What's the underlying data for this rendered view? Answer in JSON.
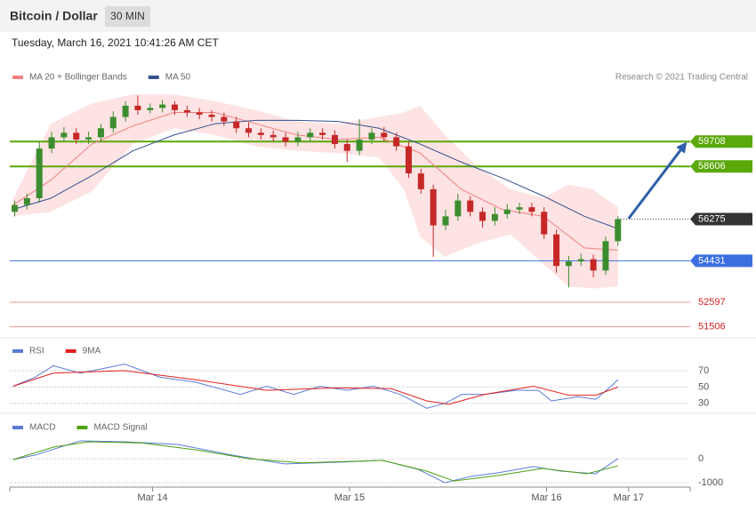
{
  "header": {
    "title": "Bitcoin / Dollar",
    "interval": "30 MIN",
    "timestamp": "Tuesday, March 16, 2021 10:41:26 AM CET",
    "credit": "Research © 2021 Trading Central"
  },
  "chart_data": [
    {
      "type": "candlestick",
      "xlim": [
        0,
        82.9
      ],
      "ylim": [
        51100,
        62200
      ],
      "color_up": "#3c8d2f",
      "color_down": "#c62828",
      "x": [
        0.6,
        2.1,
        3.6,
        5.1,
        6.6,
        8.1,
        9.6,
        11.1,
        12.6,
        14.1,
        15.6,
        17.1,
        18.6,
        20.1,
        21.6,
        23.1,
        24.6,
        26.1,
        27.6,
        29.1,
        30.6,
        32.1,
        33.6,
        35.1,
        36.6,
        38.1,
        39.6,
        41.1,
        42.6,
        44.1,
        45.6,
        47.1,
        48.6,
        50.1,
        51.6,
        53.1,
        54.6,
        56.1,
        57.6,
        59.1,
        60.6,
        62.1,
        63.6,
        65.1,
        66.6,
        68.1,
        69.6,
        71.1,
        72.6,
        74.1
      ],
      "open": [
        56600,
        56900,
        57200,
        59400,
        59900,
        60100,
        59800,
        59900,
        60300,
        60800,
        61300,
        61100,
        61200,
        61350,
        61100,
        61000,
        60900,
        60800,
        60600,
        60300,
        60100,
        60000,
        59900,
        59700,
        59900,
        60100,
        60000,
        59600,
        59300,
        59800,
        60100,
        59900,
        59500,
        58300,
        57600,
        56000,
        56400,
        57100,
        56600,
        56200,
        56500,
        56700,
        56800,
        56600,
        55600,
        54200,
        54400,
        54500,
        54000,
        55300
      ],
      "high": [
        57100,
        57400,
        59700,
        60150,
        60350,
        60300,
        60150,
        60500,
        61050,
        61500,
        61750,
        61400,
        61550,
        61500,
        61300,
        61200,
        61100,
        61000,
        60800,
        60550,
        60300,
        60200,
        60100,
        60150,
        60300,
        60300,
        60200,
        59800,
        60700,
        60300,
        60350,
        60100,
        59700,
        58500,
        57800,
        56700,
        57400,
        57300,
        56800,
        56800,
        56950,
        57000,
        57000,
        56800,
        55800,
        54650,
        54750,
        54700,
        55500,
        56400
      ],
      "low": [
        56400,
        56700,
        57000,
        59200,
        59700,
        59600,
        59600,
        59700,
        60100,
        60600,
        60900,
        60950,
        61000,
        60900,
        60800,
        60700,
        60600,
        60400,
        60100,
        59900,
        59800,
        59700,
        59500,
        59500,
        59700,
        59800,
        59400,
        58800,
        59100,
        59600,
        59700,
        59300,
        58100,
        57400,
        54600,
        55800,
        56200,
        56400,
        55900,
        56000,
        56300,
        56500,
        56400,
        55400,
        53900,
        53250,
        54200,
        53700,
        53800,
        55100
      ],
      "close": [
        56900,
        57200,
        59400,
        59900,
        60100,
        59800,
        59900,
        60300,
        60800,
        61300,
        61100,
        61200,
        61350,
        61100,
        61000,
        60900,
        60800,
        60600,
        60300,
        60100,
        60000,
        59900,
        59700,
        59900,
        60100,
        60000,
        59600,
        59300,
        59800,
        60100,
        59900,
        59500,
        58300,
        57600,
        56000,
        56400,
        57100,
        56600,
        56200,
        56500,
        56700,
        56800,
        56600,
        55600,
        54200,
        54400,
        54500,
        54000,
        55300,
        56275
      ],
      "bands": {
        "color": "#fde3e3",
        "x": [
          0.4,
          5,
          10,
          15,
          20,
          25,
          30,
          35,
          40,
          45,
          48,
          50,
          53,
          57,
          61,
          65,
          68,
          71,
          74.1
        ],
        "upper": [
          57200,
          60500,
          61400,
          61800,
          61800,
          61500,
          61100,
          60600,
          60500,
          60800,
          61000,
          61300,
          60000,
          58600,
          57600,
          57200,
          57800,
          57600,
          56800
        ],
        "lower": [
          56400,
          56600,
          57500,
          59600,
          60300,
          60000,
          59500,
          59300,
          59200,
          59000,
          57600,
          55500,
          54600,
          55200,
          55600,
          54300,
          53300,
          53200,
          53300
        ]
      },
      "series": [
        {
          "name": "MA 20 + Bollinger Bands",
          "color": "#f08080",
          "x": [
            0.4,
            5,
            10,
            15,
            20,
            25,
            30,
            35,
            40,
            45,
            50,
            55,
            60,
            65,
            70,
            74.1
          ],
          "values": [
            56900,
            58000,
            59600,
            60400,
            61000,
            61000,
            60500,
            60000,
            59800,
            59900,
            59200,
            57600,
            56700,
            56400,
            55000,
            54900
          ]
        },
        {
          "name": "MA 50",
          "color": "#34508f",
          "x": [
            0.4,
            5,
            10,
            15,
            20,
            25,
            30,
            35,
            40,
            45,
            50,
            55,
            60,
            65,
            70,
            74.1
          ],
          "values": [
            56700,
            57200,
            58200,
            59300,
            60000,
            60500,
            60650,
            60650,
            60600,
            60300,
            59600,
            58800,
            58100,
            57300,
            56400,
            55850
          ]
        }
      ],
      "levels": [
        {
          "value": 59708,
          "color": "#5aa80a",
          "style": "tag"
        },
        {
          "value": 58606,
          "color": "#5aa80a",
          "style": "tag"
        },
        {
          "value": 56275,
          "color": "#333333",
          "style": "current"
        },
        {
          "value": 54431,
          "color": "#3b6fe0",
          "style": "tag"
        },
        {
          "value": 52597,
          "color": "#d02020",
          "style": "text"
        },
        {
          "value": 51506,
          "color": "#d02020",
          "style": "text"
        }
      ],
      "arrow": {
        "color": "#2e5fa8",
        "from": [
          75.4,
          56300
        ],
        "to": [
          82.5,
          59700
        ]
      }
    },
    {
      "type": "line",
      "xlim": [
        0,
        82.9
      ],
      "ylim": [
        20,
        108
      ],
      "yticks": [
        70,
        50,
        30
      ],
      "series": [
        {
          "name": "RSI",
          "color": "#5b7bd5",
          "x": [
            0.4,
            3.1,
            5.3,
            8.6,
            14,
            18.3,
            22.6,
            28.1,
            31.3,
            34.6,
            37.8,
            41.1,
            44.3,
            47.6,
            50.8,
            53,
            55.1,
            57.9,
            61.7,
            64.4,
            66,
            69.2,
            71.4,
            73.6,
            74.1
          ],
          "values": [
            51,
            62,
            76,
            67,
            78,
            62,
            56,
            41,
            51,
            41,
            51,
            46,
            51,
            41,
            24,
            30,
            41,
            41,
            46,
            46,
            33,
            38,
            35,
            54,
            59
          ]
        },
        {
          "name": "9MA",
          "color": "#e02020",
          "x": [
            0.4,
            5.3,
            14,
            22.6,
            31.3,
            40,
            46.5,
            50.8,
            53.5,
            57.9,
            63.8,
            68.1,
            71.4,
            74.1
          ],
          "values": [
            51,
            67,
            70,
            59,
            46,
            49,
            48,
            33,
            29,
            41,
            51,
            40,
            40,
            50
          ]
        }
      ]
    },
    {
      "type": "line",
      "xlim": [
        0,
        82.9
      ],
      "ylim": [
        -1260,
        1700
      ],
      "yticks": [
        0,
        -1000
      ],
      "xticks": [
        {
          "value": 17.4,
          "label": "Mar 14"
        },
        {
          "value": 41.4,
          "label": "Mar 15"
        },
        {
          "value": 65.4,
          "label": "Mar 16"
        },
        {
          "value": 75.4,
          "label": "Mar 17"
        }
      ],
      "series": [
        {
          "name": "MACD",
          "color": "#5b7bd5",
          "x": [
            0.4,
            3.1,
            8.6,
            14,
            20.5,
            27,
            33.5,
            40,
            45.4,
            49.7,
            53,
            56.2,
            59.5,
            63.8,
            67.1,
            71.4,
            74.1
          ],
          "values": [
            -40,
            150,
            740,
            700,
            590,
            150,
            -220,
            -150,
            -70,
            -440,
            -1000,
            -740,
            -590,
            -330,
            -520,
            -630,
            0
          ]
        },
        {
          "name": "MACD Signal",
          "color": "#4ea10f",
          "x": [
            0.4,
            5.3,
            9.6,
            16.1,
            22.6,
            29.1,
            35.6,
            45.4,
            50.8,
            54.1,
            59.5,
            64.9,
            70.3,
            74.1
          ],
          "values": [
            -40,
            480,
            700,
            650,
            370,
            0,
            -180,
            -70,
            -520,
            -930,
            -700,
            -410,
            -630,
            -300
          ]
        }
      ]
    }
  ]
}
